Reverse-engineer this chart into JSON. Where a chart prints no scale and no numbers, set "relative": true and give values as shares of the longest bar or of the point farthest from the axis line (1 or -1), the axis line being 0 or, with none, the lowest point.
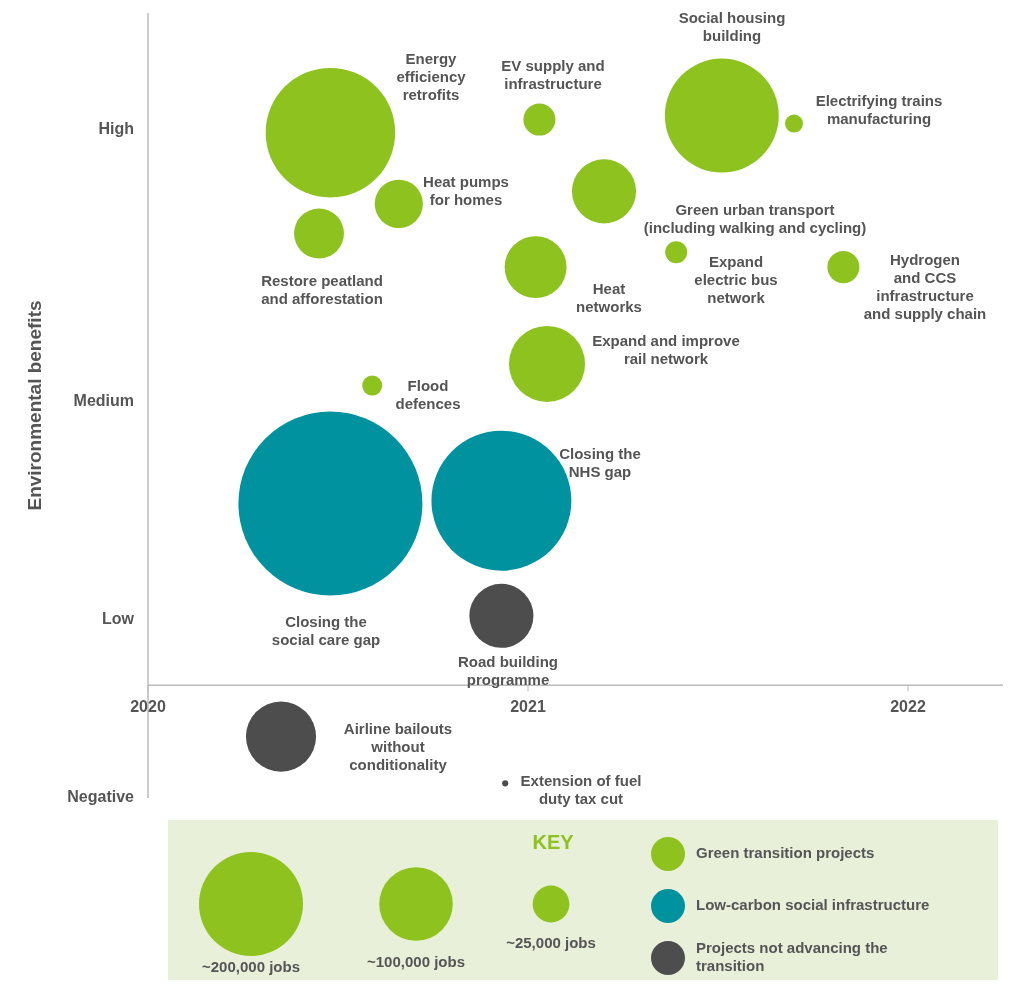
{
  "chart_data": {
    "type": "bubble",
    "relative": true,
    "ylabel": "Environmental benefits",
    "legend_title": "KEY",
    "legend": "bottom",
    "xlim": [
      2020,
      2022.25
    ],
    "xticks": [
      2020,
      2021,
      2022
    ],
    "size_legend": [
      {
        "value": 200000,
        "label": "~200,000 jobs"
      },
      {
        "value": 100000,
        "label": "~100,000 jobs"
      },
      {
        "value": 25000,
        "label": "~25,000 jobs"
      }
    ],
    "series": [
      {
        "name": "Green transition projects",
        "color": "#8dc21f",
        "x": [
          2020.48,
          2020.66,
          2020.45,
          2021.03,
          2021.51,
          2021.7,
          2021.2,
          2021.02,
          2021.39,
          2021.83,
          2021.05,
          2020.59
        ],
        "values": [
          0.97,
          0.845,
          0.793,
          0.993,
          1,
          0.986,
          0.867,
          0.734,
          0.76,
          0.734,
          0.564,
          0.526
        ],
        "sizes": [
          310000,
          43000,
          46000,
          19000,
          240000,
          6000,
          76000,
          71000,
          9000,
          19000,
          107000,
          7400
        ]
      },
      {
        "name": "Low-carbon social infrastructure",
        "color": "#00939f",
        "x": [
          2020.48,
          2020.93
        ],
        "values": [
          0.319,
          0.324
        ],
        "sizes": [
          626000,
          362000
        ]
      },
      {
        "name": "Projects not advancing the transition",
        "color": "#4d4d4d",
        "x": [
          2020.93,
          2020.35,
          2020.94
        ],
        "values": [
          0.122,
          -0.09,
          -0.172
        ],
        "sizes": [
          76000,
          91000,
          700
        ]
      }
    ],
    "annotations": [
      "Energy\nefficiency\nretrofits",
      "Heat pumps\nfor homes",
      "Restore peatland\nand afforestation",
      "EV supply and\ninfrastructure",
      "Social housing\nbuilding",
      "Electrifying trains\nmanufacturing",
      "Green urban transport\n(including walking and cycling)",
      "Heat\nnetworks",
      "Expand\nelectric bus\nnetwork",
      "Hydrogen\nand CCS\ninfrastructure\nand supply chain",
      "Expand and improve\nrail network",
      "Flood\ndefences",
      "Closing the\nsocial care gap",
      "Closing the\nNHS gap",
      "Road building\nprogramme",
      "Airline bailouts\nwithout\nconditionality",
      "Extension of fuel\nduty tax cut",
      "High",
      "Medium",
      "Low",
      "Negative"
    ]
  }
}
